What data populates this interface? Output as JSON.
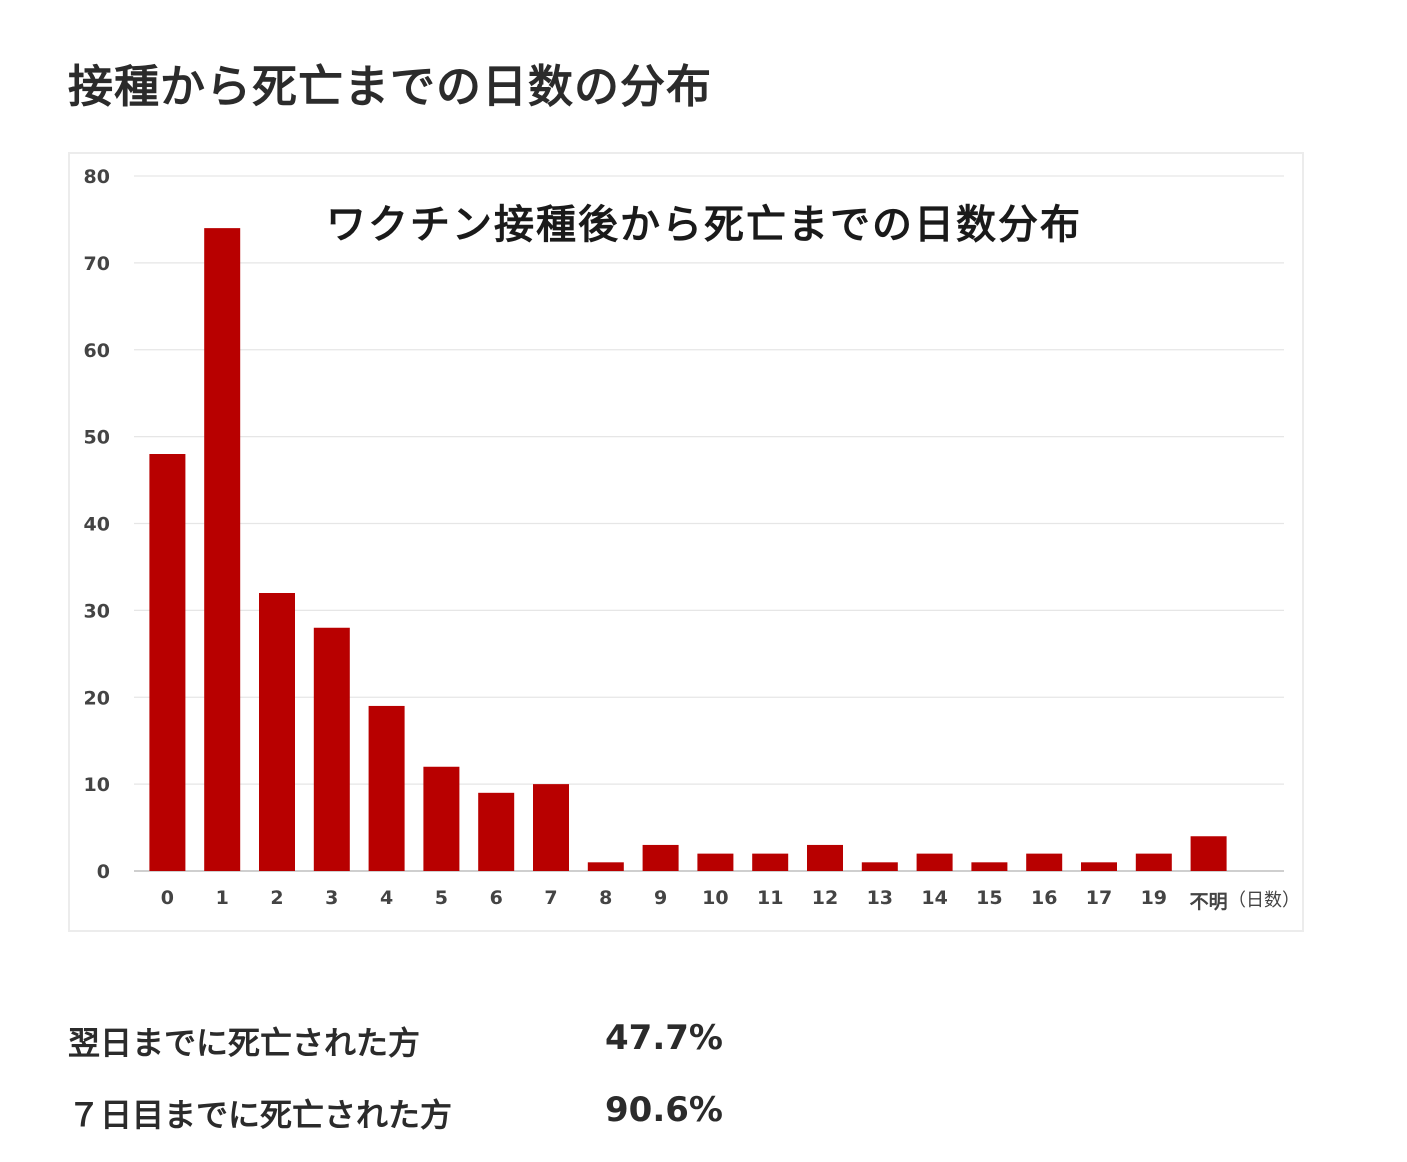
{
  "header": {
    "title": "接種から死亡までの日数の分布"
  },
  "chart_data": {
    "type": "bar",
    "title": "ワクチン接種後から死亡までの日数分布",
    "xlabel": "（日数）",
    "ylabel": "",
    "ylim": [
      0,
      80
    ],
    "yticks": [
      0,
      10,
      20,
      30,
      40,
      50,
      60,
      70,
      80
    ],
    "categories": [
      "0",
      "1",
      "2",
      "3",
      "4",
      "5",
      "6",
      "7",
      "8",
      "9",
      "10",
      "11",
      "12",
      "13",
      "14",
      "15",
      "16",
      "17",
      "19",
      "不明"
    ],
    "values": [
      48,
      74,
      32,
      28,
      19,
      12,
      9,
      10,
      1,
      3,
      2,
      2,
      3,
      1,
      2,
      1,
      2,
      1,
      2,
      4
    ],
    "grid": true,
    "bar_color": "#b80000"
  },
  "stats": [
    {
      "label": "翌日までに死亡された方",
      "value": "47.7%"
    },
    {
      "label": "７日目までに死亡された方",
      "value": "90.6%"
    }
  ]
}
